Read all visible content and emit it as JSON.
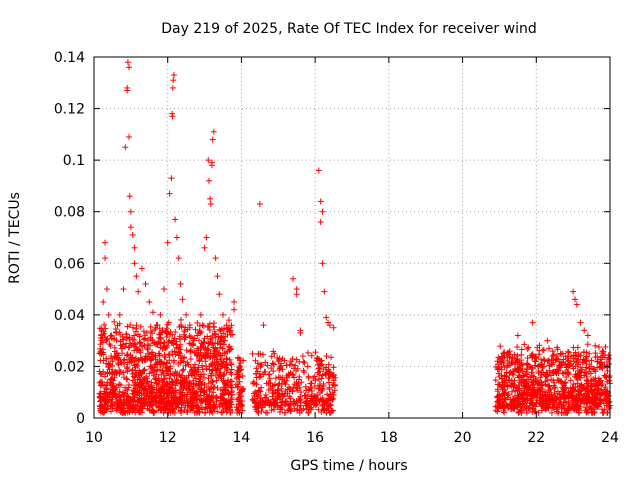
{
  "chart_data": {
    "type": "scatter",
    "title": "Day 219 of 2025, Rate Of TEC Index for receiver wind",
    "xlabel": "GPS time / hours",
    "ylabel": "ROTI / TECUs",
    "xlim": [
      10,
      24
    ],
    "ylim": [
      0,
      0.14
    ],
    "x_ticks": [
      "10",
      "12",
      "14",
      "16",
      "18",
      "20",
      "22",
      "24"
    ],
    "y_ticks": [
      "0",
      "0.02",
      "0.04",
      "0.06",
      "0.08",
      "0.1",
      "0.12",
      "0.14"
    ],
    "grid": true,
    "marker": "plus",
    "color": "#ff0000",
    "series": [
      {
        "points": [
          [
            10.2,
            0.03
          ],
          [
            10.25,
            0.045
          ],
          [
            10.3,
            0.068
          ],
          [
            10.3,
            0.062
          ],
          [
            10.35,
            0.05
          ],
          [
            10.4,
            0.04
          ],
          [
            10.45,
            0.028
          ],
          [
            10.5,
            0.022
          ],
          [
            10.6,
            0.033
          ],
          [
            10.7,
            0.04
          ],
          [
            10.8,
            0.05
          ],
          [
            10.85,
            0.105
          ],
          [
            10.9,
            0.128
          ],
          [
            10.9,
            0.127
          ],
          [
            10.92,
            0.138
          ],
          [
            10.95,
            0.136
          ],
          [
            10.95,
            0.109
          ],
          [
            10.97,
            0.086
          ],
          [
            11.0,
            0.08
          ],
          [
            11.0,
            0.074
          ],
          [
            11.05,
            0.071
          ],
          [
            11.1,
            0.066
          ],
          [
            11.1,
            0.06
          ],
          [
            11.15,
            0.055
          ],
          [
            11.2,
            0.049
          ],
          [
            11.3,
            0.058
          ],
          [
            11.4,
            0.052
          ],
          [
            11.5,
            0.045
          ],
          [
            11.6,
            0.041
          ],
          [
            11.7,
            0.036
          ],
          [
            11.8,
            0.04
          ],
          [
            11.9,
            0.05
          ],
          [
            12.0,
            0.068
          ],
          [
            12.05,
            0.087
          ],
          [
            12.1,
            0.093
          ],
          [
            12.12,
            0.118
          ],
          [
            12.13,
            0.117
          ],
          [
            12.14,
            0.128
          ],
          [
            12.15,
            0.131
          ],
          [
            12.17,
            0.133
          ],
          [
            12.2,
            0.077
          ],
          [
            12.25,
            0.07
          ],
          [
            12.3,
            0.062
          ],
          [
            12.35,
            0.052
          ],
          [
            12.4,
            0.046
          ],
          [
            12.5,
            0.04
          ],
          [
            12.6,
            0.035
          ],
          [
            12.8,
            0.032
          ],
          [
            12.9,
            0.04
          ],
          [
            13.0,
            0.066
          ],
          [
            13.05,
            0.07
          ],
          [
            13.1,
            0.1
          ],
          [
            13.12,
            0.092
          ],
          [
            13.15,
            0.085
          ],
          [
            13.17,
            0.083
          ],
          [
            13.2,
            0.099
          ],
          [
            13.2,
            0.098
          ],
          [
            13.22,
            0.108
          ],
          [
            13.25,
            0.111
          ],
          [
            13.3,
            0.062
          ],
          [
            13.35,
            0.055
          ],
          [
            13.4,
            0.048
          ],
          [
            13.5,
            0.04
          ],
          [
            13.6,
            0.036
          ],
          [
            13.8,
            0.045
          ],
          [
            13.8,
            0.042
          ],
          [
            14.5,
            0.083
          ],
          [
            14.6,
            0.036
          ],
          [
            15.0,
            0.022
          ],
          [
            15.4,
            0.054
          ],
          [
            15.5,
            0.05
          ],
          [
            15.5,
            0.048
          ],
          [
            15.6,
            0.034
          ],
          [
            15.6,
            0.033
          ],
          [
            16.1,
            0.096
          ],
          [
            16.15,
            0.084
          ],
          [
            16.15,
            0.076
          ],
          [
            16.2,
            0.08
          ],
          [
            16.2,
            0.06
          ],
          [
            16.25,
            0.049
          ],
          [
            16.3,
            0.039
          ],
          [
            16.35,
            0.037
          ],
          [
            16.4,
            0.036
          ],
          [
            16.5,
            0.035
          ],
          [
            21.5,
            0.032
          ],
          [
            21.9,
            0.037
          ],
          [
            22.3,
            0.03
          ],
          [
            22.8,
            0.024
          ],
          [
            23.0,
            0.049
          ],
          [
            23.05,
            0.046
          ],
          [
            23.1,
            0.044
          ],
          [
            23.2,
            0.037
          ],
          [
            23.3,
            0.034
          ],
          [
            23.4,
            0.032
          ],
          [
            23.6,
            0.028
          ],
          [
            23.8,
            0.024
          ]
        ]
      }
    ]
  }
}
